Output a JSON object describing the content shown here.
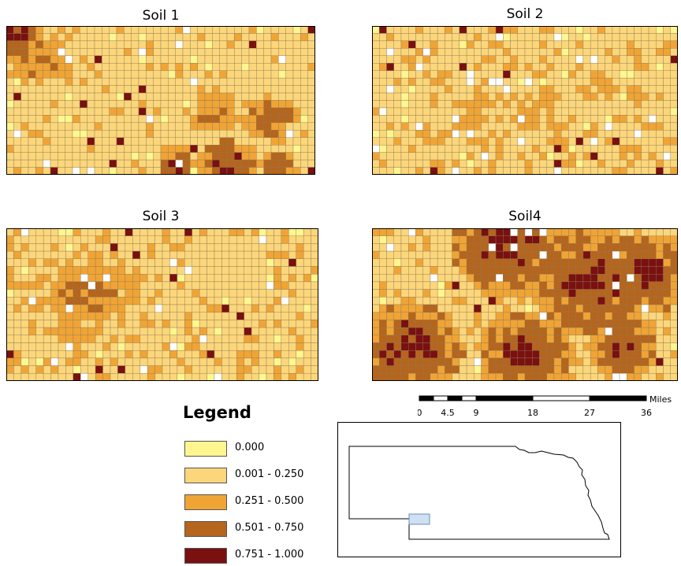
{
  "maps": [
    {
      "title": "Soil 1",
      "base": "#fde68a",
      "hotspots": [
        {
          "c": 0.04,
          "r": 0.06,
          "rad": 0.09,
          "cls": 4
        },
        {
          "c": 0.1,
          "r": 0.22,
          "rad": 0.1,
          "cls": 3
        },
        {
          "c": 0.22,
          "r": 0.3,
          "rad": 0.08,
          "cls": 2
        },
        {
          "c": 0.68,
          "r": 0.6,
          "rad": 0.09,
          "cls": 3
        },
        {
          "c": 0.85,
          "r": 0.62,
          "rad": 0.1,
          "cls": 3
        },
        {
          "c": 0.55,
          "r": 0.92,
          "rad": 0.06,
          "cls": 4
        },
        {
          "c": 0.72,
          "r": 0.95,
          "rad": 0.1,
          "cls": 4
        },
        {
          "c": 0.88,
          "r": 0.94,
          "rad": 0.06,
          "cls": 4
        }
      ],
      "noise": 0.1
    },
    {
      "title": "Soil 2",
      "base": "#fde68a",
      "hotspots": [
        {
          "c": 0.35,
          "r": 0.55,
          "rad": 0.14,
          "cls": 2
        },
        {
          "c": 0.55,
          "r": 0.6,
          "rad": 0.12,
          "cls": 2
        },
        {
          "c": 0.75,
          "r": 0.4,
          "rad": 0.08,
          "cls": 2
        },
        {
          "c": 0.2,
          "r": 0.75,
          "rad": 0.08,
          "cls": 2
        }
      ],
      "noise": 0.22
    },
    {
      "title": "Soil 3",
      "base": "#fde68a",
      "hotspots": [
        {
          "c": 0.26,
          "r": 0.42,
          "rad": 0.14,
          "cls": 3
        },
        {
          "c": 0.22,
          "r": 0.65,
          "rad": 0.1,
          "cls": 2
        },
        {
          "c": 0.42,
          "r": 0.4,
          "rad": 0.08,
          "cls": 2
        },
        {
          "c": 0.7,
          "r": 0.25,
          "rad": 0.12,
          "cls": 1
        }
      ],
      "noise": 0.2
    },
    {
      "title": "Soil4",
      "base": "#fde68a",
      "hotspots": [
        {
          "c": 0.45,
          "r": 0.1,
          "rad": 0.2,
          "cls": 4
        },
        {
          "c": 0.72,
          "r": 0.35,
          "rad": 0.2,
          "cls": 4
        },
        {
          "c": 0.9,
          "r": 0.3,
          "rad": 0.15,
          "cls": 4
        },
        {
          "c": 0.12,
          "r": 0.8,
          "rad": 0.18,
          "cls": 4
        },
        {
          "c": 0.5,
          "r": 0.82,
          "rad": 0.16,
          "cls": 4
        },
        {
          "c": 0.82,
          "r": 0.78,
          "rad": 0.12,
          "cls": 4
        }
      ],
      "noise": 0.14
    }
  ],
  "legend": {
    "title": "Legend",
    "items": [
      {
        "label": "0.000",
        "color": "#fff68f"
      },
      {
        "label": "0.001 - 0.250",
        "color": "#fcd67a"
      },
      {
        "label": "0.251 - 0.500",
        "color": "#f0a435"
      },
      {
        "label": "0.501 - 0.750",
        "color": "#b5651d"
      },
      {
        "label": "0.751 - 1.000",
        "color": "#7a1010"
      }
    ]
  },
  "scalebar": {
    "unit": "Miles",
    "ticks": [
      "0",
      "4.5",
      "9",
      "18",
      "27",
      "36"
    ]
  }
}
